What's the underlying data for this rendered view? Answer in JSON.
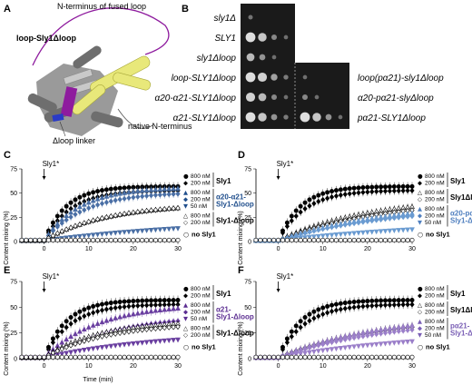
{
  "panel_labels": [
    "A",
    "B",
    "C",
    "D",
    "E",
    "F"
  ],
  "panel_a": {
    "annotations": [
      "N-terminus of fused loop",
      "loop-Sly1Δloop",
      "Δloop linker",
      "native N-terminus"
    ]
  },
  "panel_b": {
    "left_rows": [
      "sly1Δ",
      "SLY1",
      "sly1Δloop",
      "loop-SLY1Δloop",
      "α20-α21-SLY1Δloop",
      "α21-SLY1Δloop"
    ],
    "right_rows": [
      "loop(pα21)-sly1Δloop",
      "α20-pα21-slyΔloop",
      "pα21-SLY1Δloop"
    ],
    "spots_left": [
      [
        0.15,
        0,
        0,
        0
      ],
      [
        1,
        0.8,
        0.3,
        0.1
      ],
      [
        0.7,
        0.4,
        0.1,
        0
      ],
      [
        1,
        0.9,
        0.5,
        0.2
      ],
      [
        0.9,
        0.7,
        0.3,
        0.1
      ],
      [
        1,
        0.8,
        0.4,
        0.2
      ]
    ],
    "spots_right": [
      [
        0.1,
        0,
        0,
        0
      ],
      [
        0.3,
        0.1,
        0,
        0
      ],
      [
        1,
        0.8,
        0.4,
        0.1
      ]
    ]
  },
  "axis": {
    "ylabel": "Content mixing (%)",
    "xlabel": "Time (min)",
    "xticks": [
      "0",
      "10",
      "20",
      "30"
    ],
    "yticks": [
      "0",
      "25",
      "50",
      "75"
    ],
    "arrow_label": "Sly1*"
  },
  "chart_data": [
    {
      "panel": "C",
      "type": "scatter",
      "xlim": [
        -5,
        30
      ],
      "ylim": [
        0,
        75
      ],
      "series": [
        {
          "name": "800 nM Sly1",
          "marker": "filled-circle",
          "color": "#000000",
          "plateau": 56,
          "tau": 5
        },
        {
          "name": "200 nM Sly1",
          "marker": "filled-diamond",
          "color": "#000000",
          "plateau": 52,
          "tau": 6
        },
        {
          "name": "800 nM α20-α21-Sly1-Δloop",
          "marker": "tri-up",
          "color": "#4a6fa5",
          "plateau": 55,
          "tau": 8
        },
        {
          "name": "200 nM α20-α21-Sly1-Δloop",
          "marker": "diamond",
          "color": "#4a6fa5",
          "plateau": 50,
          "tau": 9
        },
        {
          "name": "50 nM α20-α21-Sly1-Δloop",
          "marker": "tri-down",
          "color": "#4a6fa5",
          "plateau": 22,
          "tau": 35
        },
        {
          "name": "800 nM Sly1-Δloop",
          "marker": "open-tri-up",
          "color": "#000000",
          "plateau": 38,
          "tau": 14
        },
        {
          "name": "200 nM Sly1-Δloop",
          "marker": "open-diamond",
          "color": "#000000",
          "plateau": 38,
          "tau": 14
        },
        {
          "name": "no Sly1",
          "marker": "open-circle",
          "color": "#000000",
          "plateau": 3,
          "tau": 30
        }
      ],
      "legend": [
        {
          "group": "Sly1",
          "color": "#000000",
          "rows": [
            "800 nM",
            "200 nM"
          ],
          "markers": [
            "●",
            "◆"
          ]
        },
        {
          "group": "α20-α21-\nSly1-Δloop",
          "color": "#1f4e8c",
          "rows": [
            "800 nM",
            "200 nM",
            "50 nM"
          ],
          "markers": [
            "▲",
            "◆",
            "▼"
          ]
        },
        {
          "group": "Sly1-Δloop",
          "color": "#000000",
          "rows": [
            "800 nM",
            "200 nM"
          ],
          "markers": [
            "△",
            "◇"
          ]
        },
        {
          "group": "no Sly1",
          "color": "#000000",
          "rows": [],
          "markers": [
            "○"
          ]
        }
      ]
    },
    {
      "panel": "D",
      "type": "scatter",
      "xlim": [
        -5,
        30
      ],
      "ylim": [
        0,
        75
      ],
      "series": [
        {
          "name": "800 nM Sly1",
          "marker": "filled-circle",
          "color": "#000000",
          "plateau": 56,
          "tau": 5
        },
        {
          "name": "200 nM Sly1",
          "marker": "filled-diamond",
          "color": "#000000",
          "plateau": 52,
          "tau": 6
        },
        {
          "name": "800 nM Sly1Δloop",
          "marker": "open-tri-up",
          "color": "#000000",
          "plateau": 45,
          "tau": 20
        },
        {
          "name": "200 nM Sly1Δloop",
          "marker": "open-diamond",
          "color": "#000000",
          "plateau": 42,
          "tau": 22
        },
        {
          "name": "800 nM α20-pα21-Sly1-Δloop",
          "marker": "tri-up",
          "color": "#6a9bd1",
          "plateau": 40,
          "tau": 25
        },
        {
          "name": "200 nM α20-pα21-Sly1-Δloop",
          "marker": "diamond",
          "color": "#6a9bd1",
          "plateau": 36,
          "tau": 25
        },
        {
          "name": "50 nM α20-pα21-Sly1-Δloop",
          "marker": "tri-down",
          "color": "#6a9bd1",
          "plateau": 20,
          "tau": 35
        },
        {
          "name": "no Sly1",
          "marker": "open-circle",
          "color": "#000000",
          "plateau": 3,
          "tau": 30
        }
      ],
      "legend": [
        {
          "group": "Sly1",
          "color": "#000000",
          "rows": [
            "800 nM",
            "200 nM"
          ],
          "markers": [
            "●",
            "◆"
          ]
        },
        {
          "group": "Sly1Δloop",
          "color": "#000000",
          "rows": [
            "800 nM",
            "200 nM"
          ],
          "markers": [
            "△",
            "◇"
          ]
        },
        {
          "group": "α20-pα21-\nSly1-Δloop",
          "color": "#4f7fbf",
          "rows": [
            "800 nM",
            "200 nM",
            "50 nM"
          ],
          "markers": [
            "▲",
            "◆",
            "▼"
          ]
        },
        {
          "group": "no Sly1",
          "color": "#000000",
          "rows": [],
          "markers": [
            "○"
          ]
        }
      ]
    },
    {
      "panel": "E",
      "type": "scatter",
      "xlim": [
        -5,
        30
      ],
      "ylim": [
        0,
        75
      ],
      "series": [
        {
          "name": "800 nM Sly1",
          "marker": "filled-circle",
          "color": "#000000",
          "plateau": 56,
          "tau": 5
        },
        {
          "name": "200 nM Sly1",
          "marker": "filled-diamond",
          "color": "#000000",
          "plateau": 52,
          "tau": 6
        },
        {
          "name": "800 nM α21-Sly1-Δloop",
          "marker": "tri-up",
          "color": "#6a3fa0",
          "plateau": 52,
          "tau": 12
        },
        {
          "name": "200 nM α21-Sly1-Δloop",
          "marker": "diamond",
          "color": "#6a3fa0",
          "plateau": 42,
          "tau": 16
        },
        {
          "name": "50 nM α21-Sly1-Δloop",
          "marker": "tri-down",
          "color": "#6a3fa0",
          "plateau": 25,
          "tau": 25
        },
        {
          "name": "800 nM Sly1-Δloop",
          "marker": "open-tri-up",
          "color": "#000000",
          "plateau": 36,
          "tau": 12
        },
        {
          "name": "200 nM Sly1-Δloop",
          "marker": "open-diamond",
          "color": "#000000",
          "plateau": 34,
          "tau": 14
        },
        {
          "name": "no Sly1",
          "marker": "open-circle",
          "color": "#000000",
          "plateau": 3,
          "tau": 30
        }
      ],
      "legend": [
        {
          "group": "Sly1",
          "color": "#000000",
          "rows": [
            "800 nM",
            "200 nM"
          ],
          "markers": [
            "●",
            "◆"
          ]
        },
        {
          "group": "α21-\nSly1-Δloop",
          "color": "#5b2d91",
          "rows": [
            "800 nM",
            "200 nM",
            "50 nM"
          ],
          "markers": [
            "▲",
            "◆",
            "▼"
          ]
        },
        {
          "group": "Sly1-Δloop",
          "color": "#000000",
          "rows": [
            "800 nM",
            "200 nM"
          ],
          "markers": [
            "△",
            "◇"
          ]
        },
        {
          "group": "no Sly1",
          "color": "#000000",
          "rows": [],
          "markers": [
            "○"
          ]
        }
      ]
    },
    {
      "panel": "F",
      "type": "scatter",
      "xlim": [
        -5,
        30
      ],
      "ylim": [
        0,
        75
      ],
      "series": [
        {
          "name": "800 nM Sly1",
          "marker": "filled-circle",
          "color": "#000000",
          "plateau": 56,
          "tau": 5
        },
        {
          "name": "200 nM Sly1",
          "marker": "filled-diamond",
          "color": "#000000",
          "plateau": 52,
          "tau": 6
        },
        {
          "name": "800 nM Sly1Δloop",
          "marker": "open-tri-up",
          "color": "#000000",
          "plateau": 42,
          "tau": 22
        },
        {
          "name": "200 nM Sly1Δloop",
          "marker": "open-diamond",
          "color": "#000000",
          "plateau": 40,
          "tau": 22
        },
        {
          "name": "800 nM pα21-Sly1-Δloop",
          "marker": "tri-up",
          "color": "#9b7fc9",
          "plateau": 42,
          "tau": 22
        },
        {
          "name": "200 nM pα21-Sly1-Δloop",
          "marker": "diamond",
          "color": "#9b7fc9",
          "plateau": 38,
          "tau": 24
        },
        {
          "name": "50 nM pα21-Sly1-Δloop",
          "marker": "tri-down",
          "color": "#9b7fc9",
          "plateau": 25,
          "tau": 30
        },
        {
          "name": "no Sly1",
          "marker": "open-circle",
          "color": "#000000",
          "plateau": 3,
          "tau": 30
        }
      ],
      "legend": [
        {
          "group": "Sly1",
          "color": "#000000",
          "rows": [
            "800 nM",
            "200 nM"
          ],
          "markers": [
            "●",
            "◆"
          ]
        },
        {
          "group": "Sly1Δloop",
          "color": "#000000",
          "rows": [
            "800 nM",
            "200 nM"
          ],
          "markers": [
            "△",
            "◇"
          ]
        },
        {
          "group": "pα21-\nSly1-Δloop",
          "color": "#7a5fb5",
          "rows": [
            "800 nM",
            "200 nM",
            "50 nM"
          ],
          "markers": [
            "▲",
            "◆",
            "▼"
          ]
        },
        {
          "group": "no Sly1",
          "color": "#000000",
          "rows": [],
          "markers": [
            "○"
          ]
        }
      ]
    }
  ]
}
